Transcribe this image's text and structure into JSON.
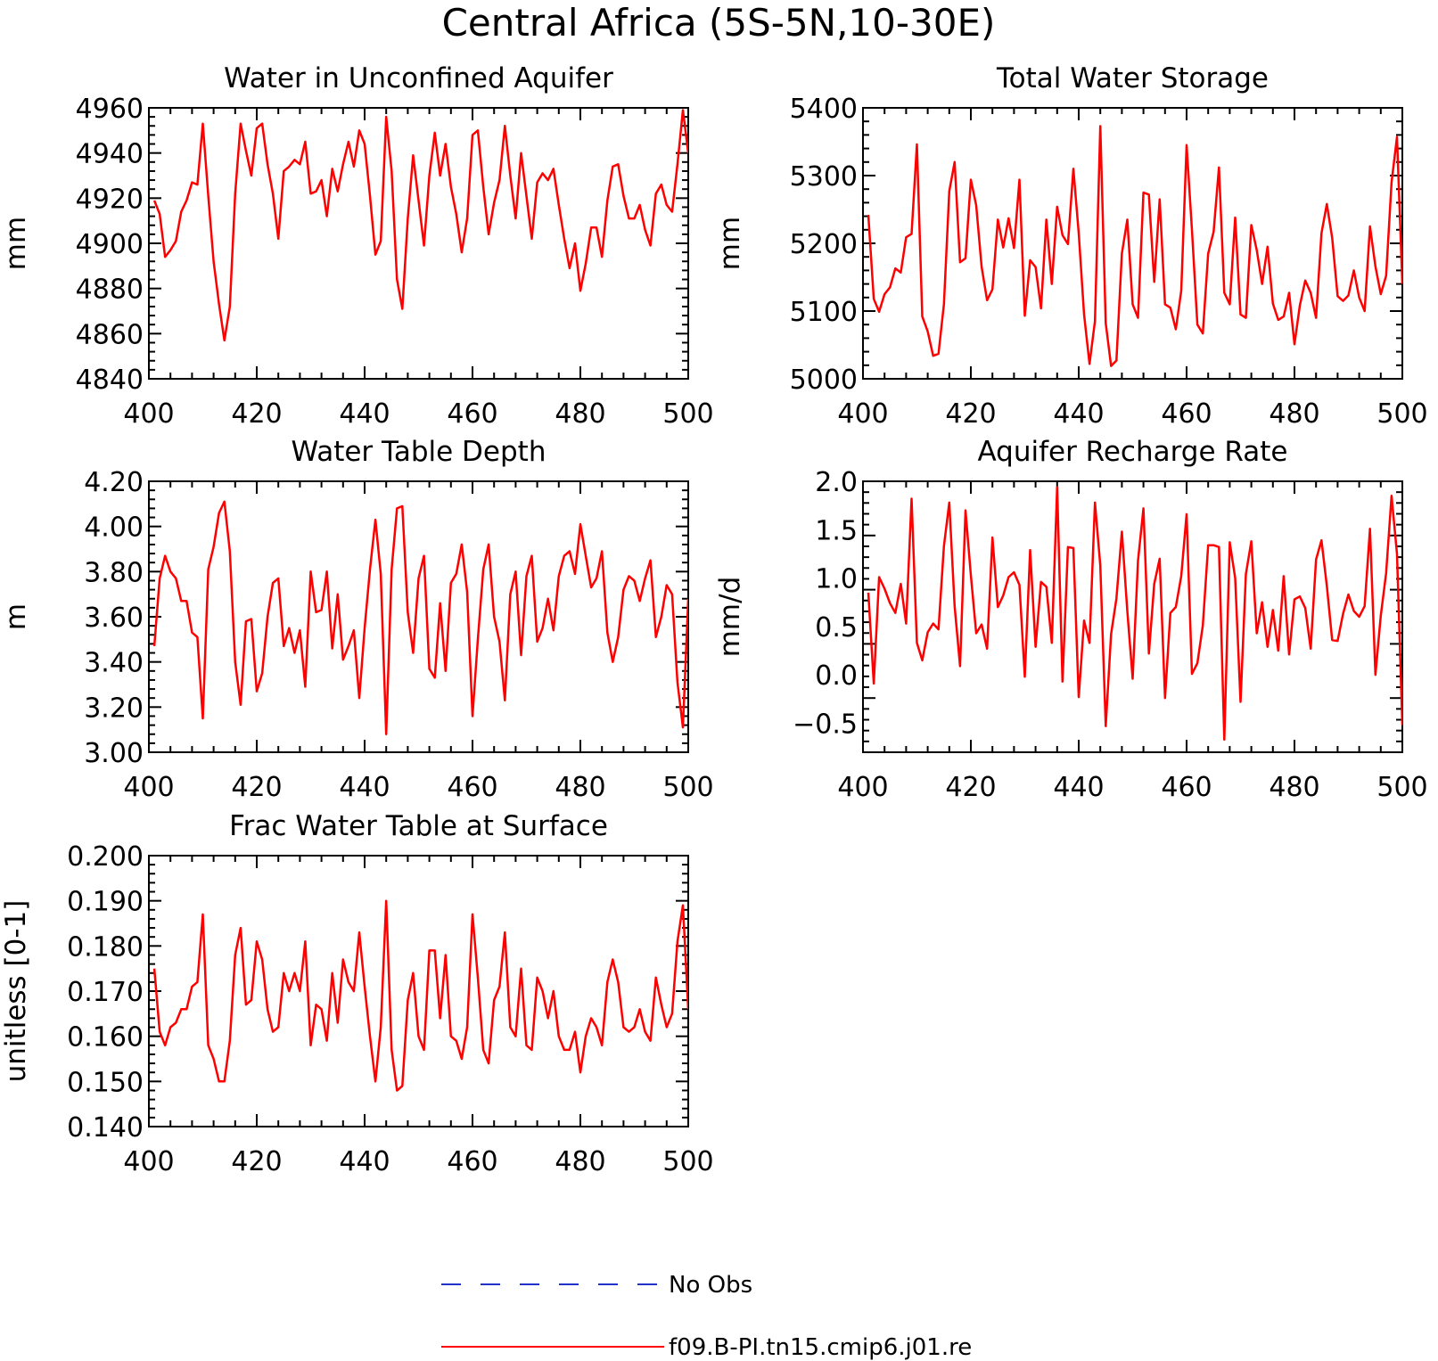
{
  "figure": {
    "title": "Central Africa (5S-5N,10-30E)"
  },
  "legend": {
    "entries": [
      {
        "label": "No Obs",
        "color": "#2233cc",
        "style": "dashed"
      },
      {
        "label": "f09.B-PI.tn15.cmip6.j01.re",
        "color": "#ff0000",
        "style": "solid"
      }
    ]
  },
  "chart_data": [
    {
      "type": "line",
      "title": "Water in Unconfined Aquifer",
      "ylabel": "mm",
      "xlabel": "",
      "xlim": [
        400,
        500
      ],
      "ylim": [
        4840,
        4960
      ],
      "xticks": [
        "400",
        "420",
        "440",
        "460",
        "480",
        "500"
      ],
      "yticks": [
        "4840",
        "4860",
        "4880",
        "4900",
        "4920",
        "4940",
        "4960"
      ],
      "x_start": 401,
      "series": [
        {
          "color": "#ff0000",
          "values": [
            4919,
            4913,
            4894,
            4897,
            4901,
            4914,
            4919,
            4927,
            4926,
            4953,
            4921,
            4892,
            4873,
            4857,
            4872,
            4922,
            4953,
            4941,
            4930,
            4951,
            4953,
            4935,
            4922,
            4902,
            4932,
            4934,
            4937,
            4935,
            4945,
            4922,
            4923,
            4928,
            4912,
            4933,
            4923,
            4935,
            4945,
            4934,
            4950,
            4944,
            4921,
            4895,
            4901,
            4956,
            4932,
            4884,
            4871,
            4911,
            4939,
            4919,
            4899,
            4930,
            4949,
            4930,
            4944,
            4925,
            4913,
            4896,
            4911,
            4948,
            4950,
            4925,
            4904,
            4918,
            4928,
            4952,
            4930,
            4911,
            4940,
            4921,
            4902,
            4927,
            4931,
            4928,
            4933,
            4917,
            4902,
            4889,
            4900,
            4879,
            4891,
            4907,
            4907,
            4894,
            4919,
            4934,
            4935,
            4921,
            4911,
            4911,
            4917,
            4906,
            4899,
            4922,
            4926,
            4917,
            4914,
            4935,
            4959,
            4940
          ]
        }
      ]
    },
    {
      "type": "line",
      "title": "Total Water Storage",
      "ylabel": "mm",
      "xlabel": "",
      "xlim": [
        400,
        500
      ],
      "ylim": [
        5000,
        5400
      ],
      "xticks": [
        "400",
        "420",
        "440",
        "460",
        "480",
        "500"
      ],
      "yticks": [
        "5000",
        "5100",
        "5200",
        "5300",
        "5400"
      ],
      "x_start": 401,
      "series": [
        {
          "color": "#ff0000",
          "values": [
            5242,
            5118,
            5099,
            5125,
            5135,
            5163,
            5157,
            5209,
            5214,
            5346,
            5092,
            5070,
            5034,
            5037,
            5110,
            5277,
            5320,
            5172,
            5178,
            5294,
            5256,
            5165,
            5116,
            5132,
            5235,
            5194,
            5237,
            5193,
            5294,
            5093,
            5175,
            5165,
            5104,
            5235,
            5140,
            5254,
            5212,
            5199,
            5310,
            5215,
            5095,
            5022,
            5085,
            5373,
            5082,
            5019,
            5027,
            5185,
            5235,
            5110,
            5090,
            5275,
            5272,
            5143,
            5265,
            5110,
            5105,
            5073,
            5130,
            5345,
            5220,
            5080,
            5067,
            5185,
            5217,
            5312,
            5127,
            5110,
            5238,
            5095,
            5090,
            5227,
            5190,
            5140,
            5195,
            5111,
            5087,
            5092,
            5127,
            5051,
            5108,
            5145,
            5127,
            5090,
            5215,
            5258,
            5208,
            5122,
            5115,
            5123,
            5160,
            5120,
            5100,
            5225,
            5166,
            5125,
            5152,
            5290,
            5357,
            5140
          ]
        }
      ]
    },
    {
      "type": "line",
      "title": "Water Table Depth",
      "ylabel": "m",
      "xlabel": "",
      "xlim": [
        400,
        500
      ],
      "ylim": [
        3.0,
        4.2
      ],
      "xticks": [
        "400",
        "420",
        "440",
        "460",
        "480",
        "500"
      ],
      "yticks": [
        "3.00",
        "3.20",
        "3.40",
        "3.60",
        "3.80",
        "4.00",
        "4.20"
      ],
      "x_start": 401,
      "series": [
        {
          "color": "#ff0000",
          "values": [
            3.47,
            3.77,
            3.87,
            3.8,
            3.77,
            3.67,
            3.67,
            3.53,
            3.51,
            3.15,
            3.81,
            3.91,
            4.06,
            4.11,
            3.89,
            3.4,
            3.21,
            3.58,
            3.59,
            3.27,
            3.35,
            3.6,
            3.75,
            3.77,
            3.47,
            3.55,
            3.44,
            3.54,
            3.29,
            3.8,
            3.62,
            3.63,
            3.8,
            3.46,
            3.7,
            3.41,
            3.47,
            3.54,
            3.24,
            3.55,
            3.81,
            4.03,
            3.79,
            3.08,
            3.81,
            4.08,
            4.09,
            3.62,
            3.44,
            3.77,
            3.87,
            3.37,
            3.33,
            3.66,
            3.36,
            3.75,
            3.79,
            3.92,
            3.71,
            3.16,
            3.5,
            3.81,
            3.92,
            3.6,
            3.49,
            3.23,
            3.7,
            3.8,
            3.43,
            3.78,
            3.87,
            3.49,
            3.55,
            3.68,
            3.54,
            3.78,
            3.87,
            3.89,
            3.79,
            4.01,
            3.87,
            3.73,
            3.77,
            3.89,
            3.53,
            3.4,
            3.51,
            3.72,
            3.78,
            3.76,
            3.67,
            3.77,
            3.85,
            3.51,
            3.6,
            3.74,
            3.7,
            3.31,
            3.11,
            3.68
          ]
        }
      ]
    },
    {
      "type": "line",
      "title": "Aquifer Recharge Rate",
      "ylabel": "mm/d",
      "xlabel": "",
      "xlim": [
        400,
        500
      ],
      "ylim": [
        -0.8,
        2.0
      ],
      "xticks": [
        "400",
        "420",
        "440",
        "460",
        "480",
        "500"
      ],
      "yticks": [
        "-0.5",
        "0.0",
        "0.5",
        "1.0",
        "1.5",
        "2.0"
      ],
      "x_start": 401,
      "series": [
        {
          "color": "#ff0000",
          "values": [
            0.85,
            -0.09,
            1.01,
            0.89,
            0.74,
            0.64,
            0.94,
            0.53,
            1.82,
            0.33,
            0.15,
            0.44,
            0.53,
            0.47,
            1.33,
            1.78,
            0.71,
            0.09,
            1.7,
            1.03,
            0.43,
            0.52,
            0.27,
            1.42,
            0.7,
            0.82,
            1.01,
            1.06,
            0.93,
            -0.02,
            1.29,
            0.29,
            0.96,
            0.91,
            0.33,
            1.94,
            -0.07,
            1.32,
            1.31,
            -0.23,
            0.56,
            0.33,
            1.78,
            1.13,
            -0.53,
            0.42,
            0.79,
            1.48,
            0.66,
            -0.04,
            1.18,
            1.72,
            0.22,
            0.94,
            1.2,
            -0.24,
            0.64,
            0.7,
            1.02,
            1.66,
            0.01,
            0.12,
            0.51,
            1.34,
            1.34,
            1.32,
            -0.67,
            1.37,
            1.0,
            -0.28,
            1.04,
            1.38,
            0.43,
            0.75,
            0.29,
            0.67,
            0.25,
            1.02,
            0.21,
            0.78,
            0.81,
            0.69,
            0.27,
            1.19,
            1.39,
            0.92,
            0.36,
            0.35,
            0.63,
            0.83,
            0.66,
            0.6,
            0.71,
            1.51,
            0.0,
            0.61,
            1.05,
            1.85,
            1.25,
            -0.52
          ]
        }
      ]
    },
    {
      "type": "line",
      "title": "Frac Water Table at Surface",
      "ylabel": "unitless [0-1]",
      "xlabel": "",
      "xlim": [
        400,
        500
      ],
      "ylim": [
        0.14,
        0.2
      ],
      "xticks": [
        "400",
        "420",
        "440",
        "460",
        "480",
        "500"
      ],
      "yticks": [
        "0.140",
        "0.150",
        "0.160",
        "0.170",
        "0.180",
        "0.190",
        "0.200"
      ],
      "x_start": 401,
      "series": [
        {
          "color": "#ff0000",
          "values": [
            0.175,
            0.161,
            0.158,
            0.162,
            0.163,
            0.166,
            0.166,
            0.171,
            0.172,
            0.187,
            0.158,
            0.155,
            0.15,
            0.15,
            0.159,
            0.178,
            0.184,
            0.167,
            0.168,
            0.181,
            0.177,
            0.166,
            0.161,
            0.162,
            0.174,
            0.17,
            0.174,
            0.17,
            0.181,
            0.158,
            0.167,
            0.166,
            0.159,
            0.174,
            0.163,
            0.177,
            0.172,
            0.17,
            0.183,
            0.171,
            0.16,
            0.15,
            0.162,
            0.19,
            0.157,
            0.148,
            0.149,
            0.168,
            0.174,
            0.16,
            0.157,
            0.179,
            0.179,
            0.164,
            0.178,
            0.16,
            0.159,
            0.155,
            0.162,
            0.187,
            0.173,
            0.157,
            0.154,
            0.168,
            0.171,
            0.183,
            0.162,
            0.16,
            0.175,
            0.158,
            0.157,
            0.173,
            0.17,
            0.164,
            0.17,
            0.16,
            0.157,
            0.157,
            0.161,
            0.152,
            0.16,
            0.164,
            0.162,
            0.158,
            0.172,
            0.177,
            0.172,
            0.162,
            0.161,
            0.162,
            0.166,
            0.161,
            0.159,
            0.173,
            0.167,
            0.162,
            0.165,
            0.181,
            0.189,
            0.166
          ]
        }
      ]
    }
  ]
}
